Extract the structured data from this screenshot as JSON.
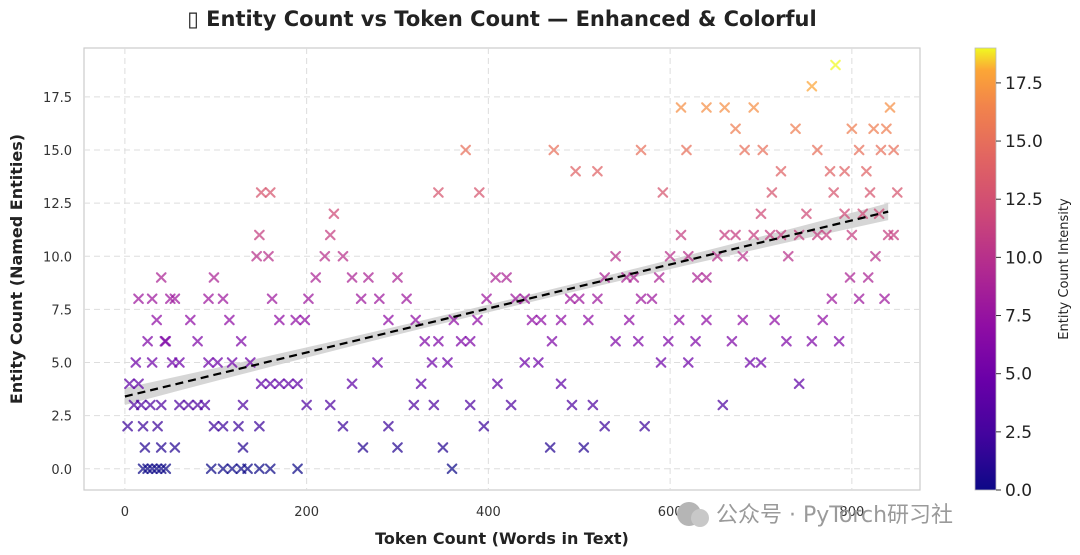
{
  "chart_data": {
    "type": "scatter",
    "title": "▯ Entity Count vs Token Count — Enhanced & Colorful",
    "xlabel": "Token Count (Words in Text)",
    "ylabel": "Entity Count (Named Entities)",
    "xlim": [
      -45,
      875
    ],
    "ylim": [
      -1,
      19.8
    ],
    "xticks": [
      0,
      200,
      400,
      600,
      800
    ],
    "xtick_labels": [
      "0",
      "200",
      "400",
      "600",
      "800"
    ],
    "yticks": [
      0,
      2.5,
      5,
      7.5,
      10,
      12.5,
      15,
      17.5
    ],
    "ytick_labels": [
      "0.0",
      "2.5",
      "5.0",
      "7.5",
      "10.0",
      "12.5",
      "15.0",
      "17.5"
    ],
    "grid": true,
    "marker": "x",
    "colormap": "plasma",
    "colorbar": {
      "label": "Entity Count Intensity",
      "range": [
        0,
        19
      ],
      "ticks": [
        0,
        2.5,
        5,
        7.5,
        10,
        12.5,
        15,
        17.5
      ],
      "tick_labels": [
        "0.0",
        "2.5",
        "5.0",
        "7.5",
        "10.0",
        "12.5",
        "15.0",
        "17.5"
      ]
    },
    "trendline": {
      "style": "dashed",
      "color": "#000000",
      "x": [
        0,
        840
      ],
      "y": [
        3.4,
        12.1
      ],
      "ci_color": "#c8c8c8"
    },
    "series": [
      {
        "points": [
          [
            5,
            4
          ],
          [
            15,
            4
          ],
          [
            20,
            0
          ],
          [
            25,
            0
          ],
          [
            30,
            0
          ],
          [
            35,
            0
          ],
          [
            40,
            0
          ],
          [
            45,
            0
          ],
          [
            22,
            1
          ],
          [
            40,
            1
          ],
          [
            55,
            1
          ],
          [
            10,
            3
          ],
          [
            18,
            3
          ],
          [
            28,
            3
          ],
          [
            40,
            3
          ],
          [
            60,
            3
          ],
          [
            3,
            2
          ],
          [
            20,
            2
          ],
          [
            36,
            2
          ],
          [
            12,
            5
          ],
          [
            30,
            5
          ],
          [
            45,
            6
          ],
          [
            52,
            5
          ],
          [
            60,
            5
          ],
          [
            70,
            3
          ],
          [
            80,
            3
          ],
          [
            88,
            3
          ],
          [
            92,
            5
          ],
          [
            102,
            5
          ],
          [
            118,
            5
          ],
          [
            130,
            3
          ],
          [
            95,
            0
          ],
          [
            108,
            0
          ],
          [
            118,
            0
          ],
          [
            128,
            0
          ],
          [
            135,
            0
          ],
          [
            148,
            0
          ],
          [
            160,
            0
          ],
          [
            130,
            1
          ],
          [
            98,
            2
          ],
          [
            108,
            2
          ],
          [
            125,
            2
          ],
          [
            148,
            2
          ],
          [
            150,
            4
          ],
          [
            160,
            4
          ],
          [
            170,
            4
          ],
          [
            180,
            4
          ],
          [
            190,
            4
          ],
          [
            200,
            3
          ],
          [
            190,
            0
          ],
          [
            25,
            6
          ],
          [
            35,
            7
          ],
          [
            44,
            6
          ],
          [
            50,
            8
          ],
          [
            55,
            8
          ],
          [
            40,
            9
          ],
          [
            15,
            8
          ],
          [
            30,
            8
          ],
          [
            72,
            7
          ],
          [
            80,
            6
          ],
          [
            92,
            8
          ],
          [
            98,
            9
          ],
          [
            108,
            8
          ],
          [
            115,
            7
          ],
          [
            128,
            6
          ],
          [
            138,
            5
          ],
          [
            145,
            10
          ],
          [
            148,
            11
          ],
          [
            158,
            10
          ],
          [
            162,
            8
          ],
          [
            170,
            7
          ],
          [
            188,
            7
          ],
          [
            198,
            7
          ],
          [
            202,
            8
          ],
          [
            210,
            9
          ],
          [
            220,
            10
          ],
          [
            226,
            11
          ],
          [
            230,
            12
          ],
          [
            240,
            10
          ],
          [
            250,
            9
          ],
          [
            260,
            8
          ],
          [
            268,
            9
          ],
          [
            280,
            8
          ],
          [
            290,
            7
          ],
          [
            300,
            9
          ],
          [
            310,
            8
          ],
          [
            320,
            7
          ],
          [
            330,
            6
          ],
          [
            338,
            5
          ],
          [
            345,
            6
          ],
          [
            355,
            5
          ],
          [
            362,
            7
          ],
          [
            370,
            6
          ],
          [
            380,
            6
          ],
          [
            388,
            7
          ],
          [
            398,
            8
          ],
          [
            408,
            9
          ],
          [
            420,
            9
          ],
          [
            430,
            8
          ],
          [
            440,
            8
          ],
          [
            448,
            7
          ],
          [
            458,
            7
          ],
          [
            470,
            6
          ],
          [
            480,
            7
          ],
          [
            490,
            8
          ],
          [
            500,
            8
          ],
          [
            510,
            7
          ],
          [
            520,
            8
          ],
          [
            528,
            9
          ],
          [
            540,
            10
          ],
          [
            552,
            9
          ],
          [
            560,
            9
          ],
          [
            568,
            8
          ],
          [
            580,
            8
          ],
          [
            588,
            9
          ],
          [
            600,
            10
          ],
          [
            612,
            11
          ],
          [
            620,
            10
          ],
          [
            630,
            9
          ],
          [
            640,
            9
          ],
          [
            652,
            10
          ],
          [
            660,
            11
          ],
          [
            672,
            11
          ],
          [
            680,
            10
          ],
          [
            692,
            11
          ],
          [
            700,
            12
          ],
          [
            710,
            11
          ],
          [
            722,
            11
          ],
          [
            730,
            10
          ],
          [
            742,
            11
          ],
          [
            750,
            12
          ],
          [
            762,
            11
          ],
          [
            772,
            11
          ],
          [
            780,
            13
          ],
          [
            792,
            12
          ],
          [
            800,
            11
          ],
          [
            812,
            12
          ],
          [
            820,
            13
          ],
          [
            830,
            12
          ],
          [
            840,
            11
          ],
          [
            226,
            3
          ],
          [
            240,
            2
          ],
          [
            250,
            4
          ],
          [
            262,
            1
          ],
          [
            278,
            5
          ],
          [
            290,
            2
          ],
          [
            300,
            1
          ],
          [
            318,
            3
          ],
          [
            326,
            4
          ],
          [
            340,
            3
          ],
          [
            350,
            1
          ],
          [
            360,
            0
          ],
          [
            380,
            3
          ],
          [
            395,
            2
          ],
          [
            410,
            4
          ],
          [
            425,
            3
          ],
          [
            440,
            5
          ],
          [
            455,
            5
          ],
          [
            468,
            1
          ],
          [
            480,
            4
          ],
          [
            492,
            3
          ],
          [
            505,
            1
          ],
          [
            515,
            3
          ],
          [
            528,
            2
          ],
          [
            540,
            6
          ],
          [
            555,
            7
          ],
          [
            565,
            6
          ],
          [
            572,
            2
          ],
          [
            590,
            5
          ],
          [
            598,
            6
          ],
          [
            610,
            7
          ],
          [
            620,
            5
          ],
          [
            628,
            6
          ],
          [
            640,
            7
          ],
          [
            658,
            3
          ],
          [
            668,
            6
          ],
          [
            680,
            7
          ],
          [
            688,
            5
          ],
          [
            700,
            5
          ],
          [
            715,
            7
          ],
          [
            728,
            6
          ],
          [
            742,
            4
          ],
          [
            756,
            6
          ],
          [
            768,
            7
          ],
          [
            778,
            8
          ],
          [
            786,
            6
          ],
          [
            798,
            9
          ],
          [
            808,
            8
          ],
          [
            818,
            9
          ],
          [
            826,
            10
          ],
          [
            836,
            8
          ],
          [
            150,
            13
          ],
          [
            160,
            13
          ],
          [
            345,
            13
          ],
          [
            375,
            15
          ],
          [
            390,
            13
          ],
          [
            472,
            15
          ],
          [
            496,
            14
          ],
          [
            520,
            14
          ],
          [
            568,
            15
          ],
          [
            592,
            13
          ],
          [
            612,
            17
          ],
          [
            618,
            15
          ],
          [
            640,
            17
          ],
          [
            660,
            17
          ],
          [
            672,
            16
          ],
          [
            682,
            15
          ],
          [
            692,
            17
          ],
          [
            702,
            15
          ],
          [
            712,
            13
          ],
          [
            722,
            14
          ],
          [
            738,
            16
          ],
          [
            756,
            18
          ],
          [
            762,
            15
          ],
          [
            776,
            14
          ],
          [
            782,
            19
          ],
          [
            792,
            14
          ],
          [
            800,
            16
          ],
          [
            808,
            15
          ],
          [
            816,
            14
          ],
          [
            824,
            16
          ],
          [
            832,
            15
          ],
          [
            838,
            16
          ],
          [
            842,
            17
          ],
          [
            846,
            15
          ],
          [
            850,
            13
          ],
          [
            846,
            11
          ]
        ]
      }
    ]
  },
  "watermark": "公众号 · PyTorch研习社"
}
